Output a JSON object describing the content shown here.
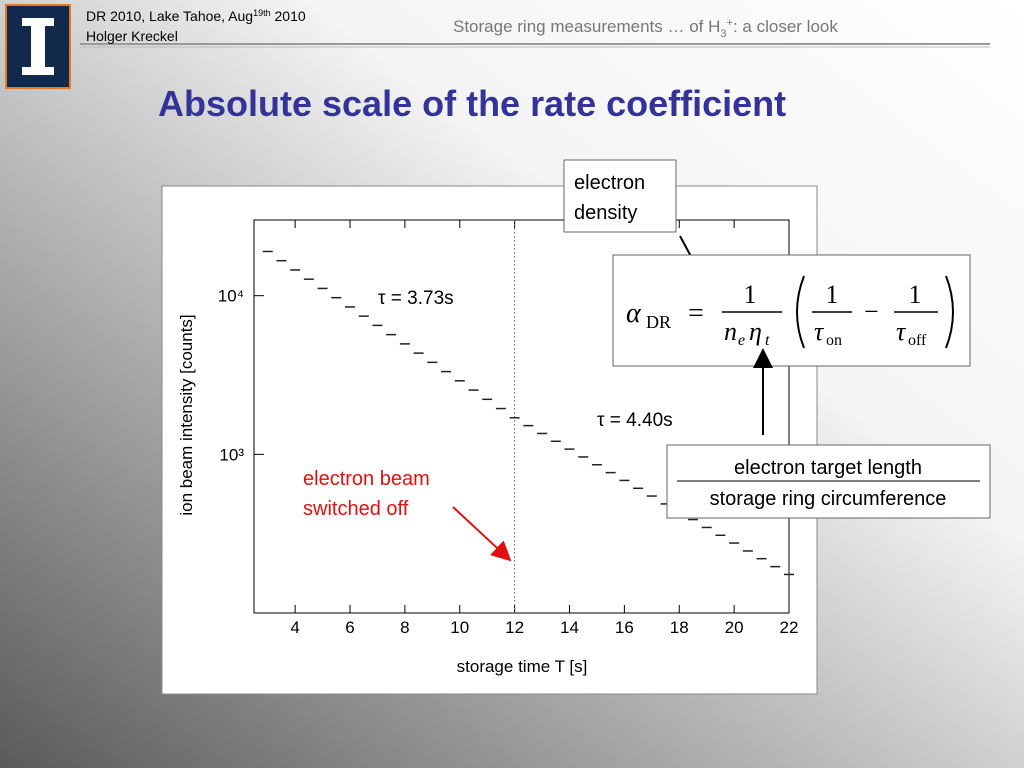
{
  "header": {
    "event": "DR 2010, Lake Tahoe, Aug",
    "event_sup": "19th",
    "event_year": " 2010",
    "author": "Holger Kreckel",
    "topic": "Storage ring measurements … of H",
    "topic_sub": "3",
    "topic_sup": "+",
    "topic_end": ": a closer look"
  },
  "slide_title": "Absolute scale of the rate coefficient",
  "chart_data": {
    "type": "scatter",
    "x": [
      3,
      3.5,
      4,
      4.5,
      5,
      5.5,
      6,
      6.5,
      7,
      7.5,
      8,
      8.5,
      9,
      9.5,
      10,
      10.5,
      11,
      11.5,
      12,
      12.5,
      13,
      13.5,
      14,
      14.5,
      15,
      15.5,
      16,
      16.5,
      17,
      17.5,
      18,
      18.5,
      19,
      19.5,
      20,
      20.5,
      21,
      21.5,
      22
    ],
    "values": [
      19000,
      16616,
      14530,
      12707,
      11112,
      9718,
      8498,
      7432,
      6499,
      5683,
      4970,
      4346,
      3801,
      3324,
      2907,
      2542,
      2223,
      1944,
      1700,
      1517,
      1354,
      1209,
      1079,
      963,
      860,
      767,
      685,
      611,
      546,
      487,
      435,
      388,
      346,
      309,
      276,
      246,
      220,
      196,
      175
    ],
    "color": "#222222",
    "xlim": [
      2.5,
      22
    ],
    "xticks": [
      4,
      6,
      8,
      10,
      12,
      14,
      16,
      18,
      20,
      22
    ],
    "ylim": [
      100,
      30000
    ],
    "yticks": [
      {
        "value": 1000,
        "label": "10³"
      },
      {
        "value": 10000,
        "label": "10⁴"
      }
    ],
    "ylog": true,
    "xlabel": "storage time T [s]",
    "ylabel": "ion beam intensity [counts]",
    "vline": 12,
    "annotations": [
      "τ = 3.73s",
      "τ = 4.40s",
      "electron beam",
      "switched off"
    ]
  },
  "callouts": {
    "density": [
      "electron",
      "density"
    ],
    "ratio": [
      "electron target length",
      "storage ring circumference"
    ]
  },
  "formula": {
    "alpha": "α",
    "alpha_sub": "DR",
    "equals": "=",
    "num1": "1",
    "n": "n",
    "n_sub": "e",
    "eta": "η",
    "eta_sub": "t",
    "num2": "1",
    "tau_on": "τ",
    "on": "on",
    "minus": "−",
    "num3": "1",
    "tau_off": "τ",
    "off": "off"
  }
}
